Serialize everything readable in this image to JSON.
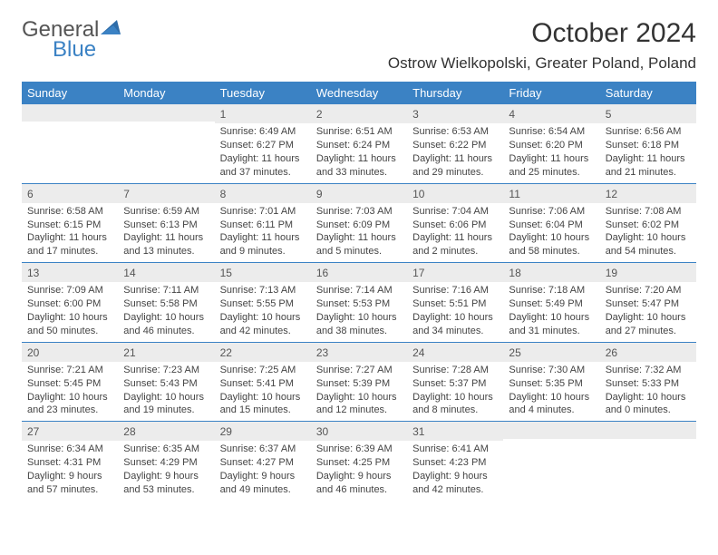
{
  "logo": {
    "line1": "General",
    "line2": "Blue"
  },
  "title": "October 2024",
  "location": "Ostrow Wielkopolski, Greater Poland, Poland",
  "day_headers": [
    "Sunday",
    "Monday",
    "Tuesday",
    "Wednesday",
    "Thursday",
    "Friday",
    "Saturday"
  ],
  "colors": {
    "header_bg": "#3b82c4",
    "daynum_bg": "#ececec",
    "rule": "#3b82c4"
  },
  "weeks": [
    [
      {
        "n": "",
        "sunrise": "",
        "sunset": "",
        "daylight": ""
      },
      {
        "n": "",
        "sunrise": "",
        "sunset": "",
        "daylight": ""
      },
      {
        "n": "1",
        "sunrise": "Sunrise: 6:49 AM",
        "sunset": "Sunset: 6:27 PM",
        "daylight": "Daylight: 11 hours and 37 minutes."
      },
      {
        "n": "2",
        "sunrise": "Sunrise: 6:51 AM",
        "sunset": "Sunset: 6:24 PM",
        "daylight": "Daylight: 11 hours and 33 minutes."
      },
      {
        "n": "3",
        "sunrise": "Sunrise: 6:53 AM",
        "sunset": "Sunset: 6:22 PM",
        "daylight": "Daylight: 11 hours and 29 minutes."
      },
      {
        "n": "4",
        "sunrise": "Sunrise: 6:54 AM",
        "sunset": "Sunset: 6:20 PM",
        "daylight": "Daylight: 11 hours and 25 minutes."
      },
      {
        "n": "5",
        "sunrise": "Sunrise: 6:56 AM",
        "sunset": "Sunset: 6:18 PM",
        "daylight": "Daylight: 11 hours and 21 minutes."
      }
    ],
    [
      {
        "n": "6",
        "sunrise": "Sunrise: 6:58 AM",
        "sunset": "Sunset: 6:15 PM",
        "daylight": "Daylight: 11 hours and 17 minutes."
      },
      {
        "n": "7",
        "sunrise": "Sunrise: 6:59 AM",
        "sunset": "Sunset: 6:13 PM",
        "daylight": "Daylight: 11 hours and 13 minutes."
      },
      {
        "n": "8",
        "sunrise": "Sunrise: 7:01 AM",
        "sunset": "Sunset: 6:11 PM",
        "daylight": "Daylight: 11 hours and 9 minutes."
      },
      {
        "n": "9",
        "sunrise": "Sunrise: 7:03 AM",
        "sunset": "Sunset: 6:09 PM",
        "daylight": "Daylight: 11 hours and 5 minutes."
      },
      {
        "n": "10",
        "sunrise": "Sunrise: 7:04 AM",
        "sunset": "Sunset: 6:06 PM",
        "daylight": "Daylight: 11 hours and 2 minutes."
      },
      {
        "n": "11",
        "sunrise": "Sunrise: 7:06 AM",
        "sunset": "Sunset: 6:04 PM",
        "daylight": "Daylight: 10 hours and 58 minutes."
      },
      {
        "n": "12",
        "sunrise": "Sunrise: 7:08 AM",
        "sunset": "Sunset: 6:02 PM",
        "daylight": "Daylight: 10 hours and 54 minutes."
      }
    ],
    [
      {
        "n": "13",
        "sunrise": "Sunrise: 7:09 AM",
        "sunset": "Sunset: 6:00 PM",
        "daylight": "Daylight: 10 hours and 50 minutes."
      },
      {
        "n": "14",
        "sunrise": "Sunrise: 7:11 AM",
        "sunset": "Sunset: 5:58 PM",
        "daylight": "Daylight: 10 hours and 46 minutes."
      },
      {
        "n": "15",
        "sunrise": "Sunrise: 7:13 AM",
        "sunset": "Sunset: 5:55 PM",
        "daylight": "Daylight: 10 hours and 42 minutes."
      },
      {
        "n": "16",
        "sunrise": "Sunrise: 7:14 AM",
        "sunset": "Sunset: 5:53 PM",
        "daylight": "Daylight: 10 hours and 38 minutes."
      },
      {
        "n": "17",
        "sunrise": "Sunrise: 7:16 AM",
        "sunset": "Sunset: 5:51 PM",
        "daylight": "Daylight: 10 hours and 34 minutes."
      },
      {
        "n": "18",
        "sunrise": "Sunrise: 7:18 AM",
        "sunset": "Sunset: 5:49 PM",
        "daylight": "Daylight: 10 hours and 31 minutes."
      },
      {
        "n": "19",
        "sunrise": "Sunrise: 7:20 AM",
        "sunset": "Sunset: 5:47 PM",
        "daylight": "Daylight: 10 hours and 27 minutes."
      }
    ],
    [
      {
        "n": "20",
        "sunrise": "Sunrise: 7:21 AM",
        "sunset": "Sunset: 5:45 PM",
        "daylight": "Daylight: 10 hours and 23 minutes."
      },
      {
        "n": "21",
        "sunrise": "Sunrise: 7:23 AM",
        "sunset": "Sunset: 5:43 PM",
        "daylight": "Daylight: 10 hours and 19 minutes."
      },
      {
        "n": "22",
        "sunrise": "Sunrise: 7:25 AM",
        "sunset": "Sunset: 5:41 PM",
        "daylight": "Daylight: 10 hours and 15 minutes."
      },
      {
        "n": "23",
        "sunrise": "Sunrise: 7:27 AM",
        "sunset": "Sunset: 5:39 PM",
        "daylight": "Daylight: 10 hours and 12 minutes."
      },
      {
        "n": "24",
        "sunrise": "Sunrise: 7:28 AM",
        "sunset": "Sunset: 5:37 PM",
        "daylight": "Daylight: 10 hours and 8 minutes."
      },
      {
        "n": "25",
        "sunrise": "Sunrise: 7:30 AM",
        "sunset": "Sunset: 5:35 PM",
        "daylight": "Daylight: 10 hours and 4 minutes."
      },
      {
        "n": "26",
        "sunrise": "Sunrise: 7:32 AM",
        "sunset": "Sunset: 5:33 PM",
        "daylight": "Daylight: 10 hours and 0 minutes."
      }
    ],
    [
      {
        "n": "27",
        "sunrise": "Sunrise: 6:34 AM",
        "sunset": "Sunset: 4:31 PM",
        "daylight": "Daylight: 9 hours and 57 minutes."
      },
      {
        "n": "28",
        "sunrise": "Sunrise: 6:35 AM",
        "sunset": "Sunset: 4:29 PM",
        "daylight": "Daylight: 9 hours and 53 minutes."
      },
      {
        "n": "29",
        "sunrise": "Sunrise: 6:37 AM",
        "sunset": "Sunset: 4:27 PM",
        "daylight": "Daylight: 9 hours and 49 minutes."
      },
      {
        "n": "30",
        "sunrise": "Sunrise: 6:39 AM",
        "sunset": "Sunset: 4:25 PM",
        "daylight": "Daylight: 9 hours and 46 minutes."
      },
      {
        "n": "31",
        "sunrise": "Sunrise: 6:41 AM",
        "sunset": "Sunset: 4:23 PM",
        "daylight": "Daylight: 9 hours and 42 minutes."
      },
      {
        "n": "",
        "sunrise": "",
        "sunset": "",
        "daylight": ""
      },
      {
        "n": "",
        "sunrise": "",
        "sunset": "",
        "daylight": ""
      }
    ]
  ]
}
